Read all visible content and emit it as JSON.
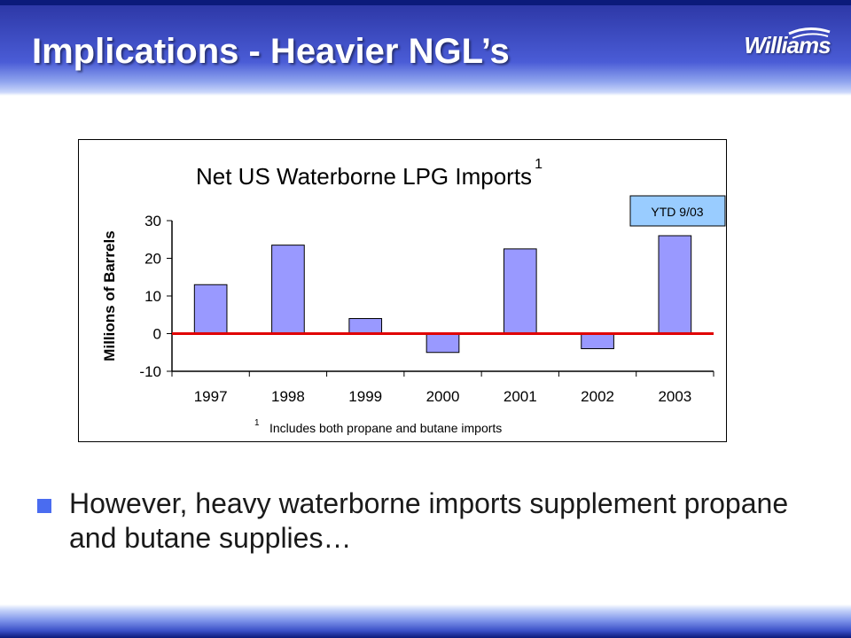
{
  "slide": {
    "title": "Implications - Heavier NGL’s",
    "logo_text": "Williams",
    "bullet": "However, heavy waterborne imports supplement propane and butane supplies…",
    "colors": {
      "title_bar": "#2b35a3",
      "bar_fill": "#9999ff",
      "zero_line": "#e00000",
      "callout_fill": "#99ccff",
      "bullet": "#4a6cf0"
    }
  },
  "chart_data": {
    "type": "bar",
    "title": "Net US Waterborne LPG Imports",
    "title_superscript": "1",
    "ylabel": "Millions of Barrels",
    "xlabel": "",
    "categories": [
      "1997",
      "1998",
      "1999",
      "2000",
      "2001",
      "2002",
      "2003"
    ],
    "values": [
      13,
      23.5,
      4,
      -5,
      22.5,
      -4,
      26
    ],
    "ylim": [
      -10,
      30
    ],
    "yticks": [
      30,
      20,
      10,
      0,
      -10
    ],
    "zero_line": true,
    "grid": false,
    "legend": "none",
    "annotation": "YTD 9/03",
    "footnote_marker": "1",
    "footnote": "Includes both propane and butane imports"
  }
}
